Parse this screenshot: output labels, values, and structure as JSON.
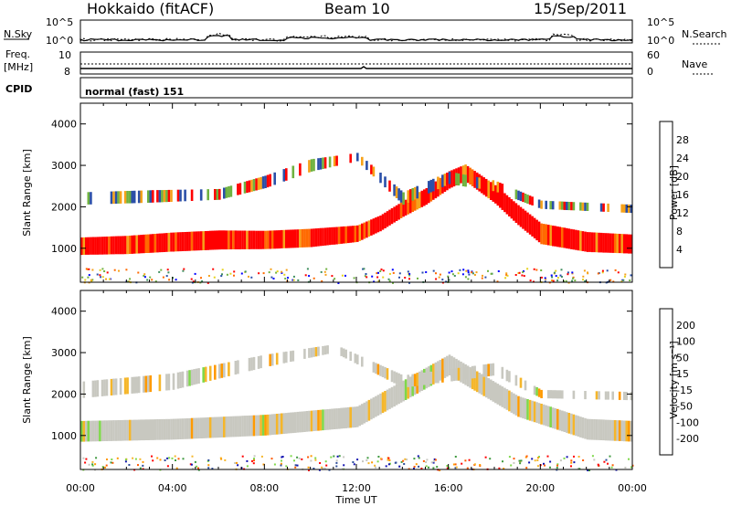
{
  "header": {
    "station": "Hokkaido (fitACF)",
    "beam": "Beam 10",
    "date": "15/Sep/2011"
  },
  "panels": {
    "nsky": {
      "label": "N.Sky",
      "right_label": "N.Search",
      "left_ticks": [
        "10^5",
        "10^0"
      ],
      "right_ticks": [
        "10^5",
        "10^0"
      ]
    },
    "freq": {
      "label_line1": "Freq.",
      "label_line2": "[MHz]",
      "right_label": "Nave",
      "left_ticks": [
        "10",
        "8"
      ],
      "right_ticks": [
        "60",
        "0"
      ]
    },
    "cpid": {
      "label": "CPID",
      "text": "normal (fast) 151"
    }
  },
  "colors": {
    "power": [
      "#0000ff",
      "#2a4fa8",
      "#3f8f5f",
      "#6fb23f",
      "#e6d21e",
      "#f6a21a",
      "#ff6a00",
      "#ff0000"
    ],
    "velocity": [
      "#ff0000",
      "#ff5a00",
      "#ff9a00",
      "#f5b62a",
      "#c8c8c0",
      "#7ed84a",
      "#3f9a3f",
      "#2d4d9a",
      "#1010b0"
    ]
  },
  "chart_data": [
    {
      "type": "heatmap",
      "title": "Power",
      "ylabel": "Slant Range [km]",
      "xlabel": "",
      "ylim": [
        180,
        4500
      ],
      "xlim": [
        0,
        24
      ],
      "yticks": [
        1000,
        2000,
        3000,
        4000
      ],
      "colorbar": {
        "label": "Power [dB]",
        "ticks": [
          "28",
          "24",
          "20",
          "16",
          "12",
          "8",
          "4"
        ],
        "range": [
          0,
          32
        ]
      },
      "echo_bands": [
        {
          "name": "lower",
          "points": [
            [
              0,
              1050,
              420
            ],
            [
              2,
              1080,
              440
            ],
            [
              4,
              1150,
              460
            ],
            [
              6,
              1200,
              460
            ],
            [
              8,
              1200,
              440
            ],
            [
              10,
              1250,
              440
            ],
            [
              12,
              1350,
              400
            ],
            [
              13,
              1600,
              380
            ],
            [
              14,
              1950,
              380
            ],
            [
              15,
              2250,
              400
            ],
            [
              16,
              2650,
              420
            ],
            [
              16.7,
              2820,
              400
            ],
            [
              18,
              2300,
              440
            ],
            [
              19,
              1800,
              480
            ],
            [
              20,
              1350,
              500
            ],
            [
              22,
              1150,
              480
            ],
            [
              24,
              1100,
              460
            ]
          ]
        },
        {
          "name": "upper",
          "points": [
            [
              0,
              2200,
              300
            ],
            [
              3,
              2250,
              300
            ],
            [
              6,
              2300,
              260
            ],
            [
              8,
              2600,
              300
            ],
            [
              10,
              3000,
              300
            ],
            [
              12,
              3200,
              200
            ],
            [
              14,
              2200,
              300
            ],
            [
              16,
              2700,
              300
            ],
            [
              18,
              2500,
              260
            ],
            [
              20,
              2050,
              200
            ],
            [
              24,
              1950,
              200
            ]
          ]
        }
      ]
    },
    {
      "type": "heatmap",
      "title": "Velocity",
      "ylabel": "Slant Range [km]",
      "xlabel": "Time UT",
      "ylim": [
        180,
        4500
      ],
      "xlim": [
        0,
        24
      ],
      "yticks": [
        1000,
        2000,
        3000,
        4000
      ],
      "xticks": [
        "00:00",
        "04:00",
        "08:00",
        "12:00",
        "16:00",
        "20:00",
        "00:00"
      ],
      "colorbar": {
        "label": "Velocity [m s⁻¹]",
        "ticks": [
          "200",
          "100",
          "50",
          "15",
          "-15",
          "-50",
          "-100",
          "-200"
        ],
        "range": [
          -250,
          250
        ]
      },
      "echo_bands": [
        {
          "name": "lower",
          "points": [
            [
              0,
              1100,
              500
            ],
            [
              4,
              1150,
              500
            ],
            [
              8,
              1250,
              500
            ],
            [
              12,
              1450,
              500
            ],
            [
              16,
              2700,
              500
            ],
            [
              19,
              1700,
              500
            ],
            [
              22,
              1150,
              500
            ],
            [
              24,
              1100,
              500
            ]
          ]
        },
        {
          "name": "upper",
          "points": [
            [
              0,
              2100,
              400
            ],
            [
              4,
              2300,
              400
            ],
            [
              8,
              2800,
              300
            ],
            [
              11,
              3100,
              200
            ],
            [
              14,
              2300,
              300
            ],
            [
              18,
              2600,
              300
            ],
            [
              20,
              2000,
              200
            ],
            [
              24,
              1950,
              200
            ]
          ]
        }
      ]
    }
  ]
}
